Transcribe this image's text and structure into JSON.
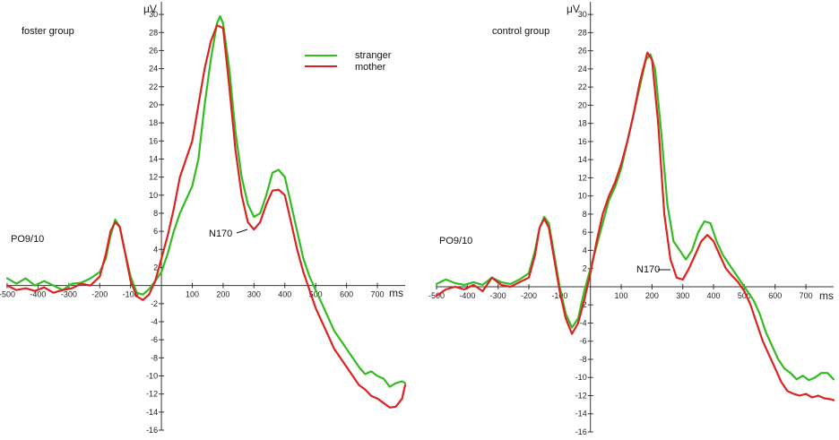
{
  "chart_data": [
    {
      "type": "line",
      "title": "foster group",
      "xlabel": "ms",
      "ylabel": "μV",
      "xlim": [
        -500,
        790
      ],
      "ylim": [
        -16,
        31
      ],
      "x_ticks": [
        -500,
        -400,
        -300,
        -200,
        -100,
        100,
        200,
        300,
        400,
        500,
        600,
        700
      ],
      "y_ticks": [
        30,
        28,
        26,
        24,
        22,
        20,
        18,
        16,
        14,
        12,
        10,
        8,
        6,
        4,
        2,
        -2,
        -4,
        -6,
        -8,
        -10,
        -12,
        -14,
        -16
      ],
      "electrode_label": "PO9/10",
      "annotation": {
        "text": "N170",
        "x": 300,
        "y": 6.5
      },
      "legend": {
        "position": "top-right"
      },
      "series": [
        {
          "name": "stranger",
          "color": "#33bb22",
          "points": [
            [
              -500,
              0.8
            ],
            [
              -470,
              0.2
            ],
            [
              -440,
              0.8
            ],
            [
              -410,
              0
            ],
            [
              -380,
              0.5
            ],
            [
              -350,
              0
            ],
            [
              -320,
              -0.5
            ],
            [
              -290,
              0.2
            ],
            [
              -260,
              0.3
            ],
            [
              -230,
              0.8
            ],
            [
              -200,
              1.5
            ],
            [
              -180,
              3
            ],
            [
              -165,
              5.5
            ],
            [
              -150,
              7.3
            ],
            [
              -135,
              6.5
            ],
            [
              -120,
              4
            ],
            [
              -100,
              1
            ],
            [
              -80,
              -0.8
            ],
            [
              -60,
              -1
            ],
            [
              -40,
              -0.4
            ],
            [
              -20,
              0.5
            ],
            [
              0,
              1.5
            ],
            [
              20,
              3.5
            ],
            [
              40,
              6
            ],
            [
              60,
              8
            ],
            [
              80,
              9.5
            ],
            [
              100,
              11
            ],
            [
              120,
              14
            ],
            [
              140,
              20
            ],
            [
              160,
              25
            ],
            [
              180,
              29
            ],
            [
              190,
              29.8
            ],
            [
              200,
              29
            ],
            [
              220,
              24
            ],
            [
              240,
              17
            ],
            [
              260,
              12
            ],
            [
              280,
              9
            ],
            [
              300,
              7.6
            ],
            [
              320,
              8
            ],
            [
              340,
              10
            ],
            [
              360,
              12.5
            ],
            [
              380,
              12.8
            ],
            [
              400,
              12
            ],
            [
              420,
              9
            ],
            [
              440,
              6
            ],
            [
              460,
              3
            ],
            [
              480,
              1
            ],
            [
              500,
              -0.5
            ],
            [
              520,
              -2
            ],
            [
              540,
              -3.5
            ],
            [
              560,
              -5
            ],
            [
              580,
              -6
            ],
            [
              600,
              -7
            ],
            [
              620,
              -8
            ],
            [
              640,
              -9
            ],
            [
              660,
              -9.8
            ],
            [
              680,
              -9.5
            ],
            [
              700,
              -10
            ],
            [
              720,
              -10.3
            ],
            [
              740,
              -11.2
            ],
            [
              760,
              -10.8
            ],
            [
              780,
              -10.6
            ],
            [
              790,
              -10.8
            ]
          ]
        },
        {
          "name": "mother",
          "color": "#dd2222",
          "points": [
            [
              -500,
              0
            ],
            [
              -470,
              -0.5
            ],
            [
              -440,
              -0.3
            ],
            [
              -410,
              -0.6
            ],
            [
              -380,
              -0.2
            ],
            [
              -350,
              -0.8
            ],
            [
              -320,
              -0.5
            ],
            [
              -290,
              -0.3
            ],
            [
              -260,
              0.2
            ],
            [
              -230,
              0
            ],
            [
              -200,
              1
            ],
            [
              -180,
              3.5
            ],
            [
              -165,
              6
            ],
            [
              -150,
              7
            ],
            [
              -135,
              6.5
            ],
            [
              -120,
              4
            ],
            [
              -100,
              0.5
            ],
            [
              -80,
              -1.2
            ],
            [
              -60,
              -1.6
            ],
            [
              -40,
              -1
            ],
            [
              -20,
              0.5
            ],
            [
              0,
              3
            ],
            [
              20,
              5.5
            ],
            [
              40,
              8.5
            ],
            [
              60,
              12
            ],
            [
              80,
              14
            ],
            [
              100,
              16
            ],
            [
              120,
              20
            ],
            [
              140,
              24
            ],
            [
              160,
              27
            ],
            [
              180,
              28.8
            ],
            [
              200,
              28.5
            ],
            [
              220,
              22
            ],
            [
              240,
              15
            ],
            [
              260,
              10
            ],
            [
              280,
              7
            ],
            [
              300,
              6.2
            ],
            [
              320,
              7
            ],
            [
              340,
              9
            ],
            [
              360,
              10.5
            ],
            [
              380,
              10.6
            ],
            [
              400,
              10
            ],
            [
              420,
              7
            ],
            [
              440,
              4
            ],
            [
              460,
              1.5
            ],
            [
              480,
              -0.5
            ],
            [
              500,
              -2.5
            ],
            [
              520,
              -4
            ],
            [
              540,
              -5.5
            ],
            [
              560,
              -7
            ],
            [
              580,
              -8
            ],
            [
              600,
              -9
            ],
            [
              620,
              -10
            ],
            [
              640,
              -11
            ],
            [
              660,
              -11.5
            ],
            [
              680,
              -12.2
            ],
            [
              700,
              -12.5
            ],
            [
              720,
              -13
            ],
            [
              740,
              -13.5
            ],
            [
              760,
              -13.4
            ],
            [
              780,
              -12.5
            ],
            [
              790,
              -11
            ]
          ]
        }
      ]
    },
    {
      "type": "line",
      "title": "control group",
      "xlabel": "ms",
      "ylabel": "μV",
      "xlim": [
        -500,
        790
      ],
      "ylim": [
        -16,
        31
      ],
      "x_ticks": [
        -500,
        -400,
        -300,
        -200,
        -100,
        100,
        200,
        300,
        400,
        500,
        600,
        700
      ],
      "y_ticks": [
        30,
        28,
        26,
        24,
        22,
        20,
        18,
        16,
        14,
        12,
        10,
        8,
        6,
        4,
        2,
        -2,
        -4,
        -6,
        -8,
        -10,
        -12,
        -14,
        -16
      ],
      "electrode_label": "PO9/10",
      "annotation": {
        "text": "N170",
        "x": 240,
        "y": 1.5
      },
      "series": [
        {
          "name": "stranger",
          "color": "#33bb22",
          "points": [
            [
              -500,
              0.3
            ],
            [
              -470,
              0.8
            ],
            [
              -440,
              0.4
            ],
            [
              -410,
              0.2
            ],
            [
              -380,
              0.5
            ],
            [
              -350,
              0.2
            ],
            [
              -320,
              1
            ],
            [
              -290,
              0.5
            ],
            [
              -260,
              0.3
            ],
            [
              -230,
              0.8
            ],
            [
              -200,
              1.5
            ],
            [
              -180,
              4
            ],
            [
              -165,
              6.5
            ],
            [
              -150,
              7.7
            ],
            [
              -135,
              7
            ],
            [
              -120,
              4
            ],
            [
              -100,
              0
            ],
            [
              -80,
              -3
            ],
            [
              -60,
              -4.5
            ],
            [
              -40,
              -3.5
            ],
            [
              -20,
              -0.5
            ],
            [
              0,
              2
            ],
            [
              20,
              4.5
            ],
            [
              40,
              7
            ],
            [
              60,
              9.5
            ],
            [
              80,
              11
            ],
            [
              100,
              13
            ],
            [
              120,
              16
            ],
            [
              140,
              19
            ],
            [
              160,
              22
            ],
            [
              180,
              25
            ],
            [
              195,
              25.6
            ],
            [
              210,
              24
            ],
            [
              230,
              17
            ],
            [
              250,
              9
            ],
            [
              270,
              5
            ],
            [
              290,
              4
            ],
            [
              310,
              3
            ],
            [
              330,
              4
            ],
            [
              350,
              6
            ],
            [
              370,
              7.2
            ],
            [
              390,
              7
            ],
            [
              410,
              5
            ],
            [
              430,
              3.5
            ],
            [
              450,
              2.5
            ],
            [
              470,
              1.5
            ],
            [
              490,
              0.5
            ],
            [
              510,
              -0.5
            ],
            [
              530,
              -1.5
            ],
            [
              550,
              -3
            ],
            [
              570,
              -5
            ],
            [
              590,
              -6.5
            ],
            [
              610,
              -8
            ],
            [
              630,
              -9
            ],
            [
              650,
              -9.5
            ],
            [
              670,
              -10.2
            ],
            [
              690,
              -9.8
            ],
            [
              710,
              -10.3
            ],
            [
              730,
              -10
            ],
            [
              750,
              -9.5
            ],
            [
              770,
              -9.5
            ],
            [
              790,
              -10.2
            ]
          ]
        },
        {
          "name": "mother",
          "color": "#dd2222",
          "points": [
            [
              -500,
              -1
            ],
            [
              -470,
              -0.3
            ],
            [
              -440,
              0
            ],
            [
              -410,
              -0.3
            ],
            [
              -380,
              0.2
            ],
            [
              -350,
              -0.5
            ],
            [
              -320,
              1
            ],
            [
              -290,
              0.2
            ],
            [
              -260,
              0
            ],
            [
              -230,
              0.5
            ],
            [
              -200,
              1
            ],
            [
              -180,
              3.5
            ],
            [
              -165,
              6.5
            ],
            [
              -150,
              7.5
            ],
            [
              -135,
              6.5
            ],
            [
              -120,
              3.5
            ],
            [
              -100,
              -0.5
            ],
            [
              -80,
              -3.5
            ],
            [
              -60,
              -5.2
            ],
            [
              -40,
              -4
            ],
            [
              -20,
              -1.5
            ],
            [
              0,
              1.5
            ],
            [
              20,
              5
            ],
            [
              40,
              8
            ],
            [
              60,
              10
            ],
            [
              80,
              11.5
            ],
            [
              100,
              13.5
            ],
            [
              120,
              16
            ],
            [
              140,
              19
            ],
            [
              160,
              22.5
            ],
            [
              185,
              25.8
            ],
            [
              200,
              25
            ],
            [
              220,
              18
            ],
            [
              240,
              8
            ],
            [
              260,
              3
            ],
            [
              280,
              1
            ],
            [
              300,
              0.8
            ],
            [
              320,
              2
            ],
            [
              340,
              3.5
            ],
            [
              360,
              5
            ],
            [
              380,
              5.7
            ],
            [
              400,
              5
            ],
            [
              420,
              3.5
            ],
            [
              440,
              2
            ],
            [
              460,
              1.2
            ],
            [
              480,
              0.5
            ],
            [
              500,
              -0.5
            ],
            [
              520,
              -2
            ],
            [
              540,
              -4
            ],
            [
              560,
              -6
            ],
            [
              580,
              -7.5
            ],
            [
              600,
              -9
            ],
            [
              620,
              -10.5
            ],
            [
              640,
              -11.5
            ],
            [
              660,
              -11.8
            ],
            [
              680,
              -12
            ],
            [
              700,
              -11.8
            ],
            [
              720,
              -12.2
            ],
            [
              740,
              -12
            ],
            [
              760,
              -12.3
            ],
            [
              780,
              -12.4
            ],
            [
              790,
              -12.5
            ]
          ]
        }
      ]
    }
  ],
  "legend": {
    "items": [
      "stranger",
      "mother"
    ]
  }
}
